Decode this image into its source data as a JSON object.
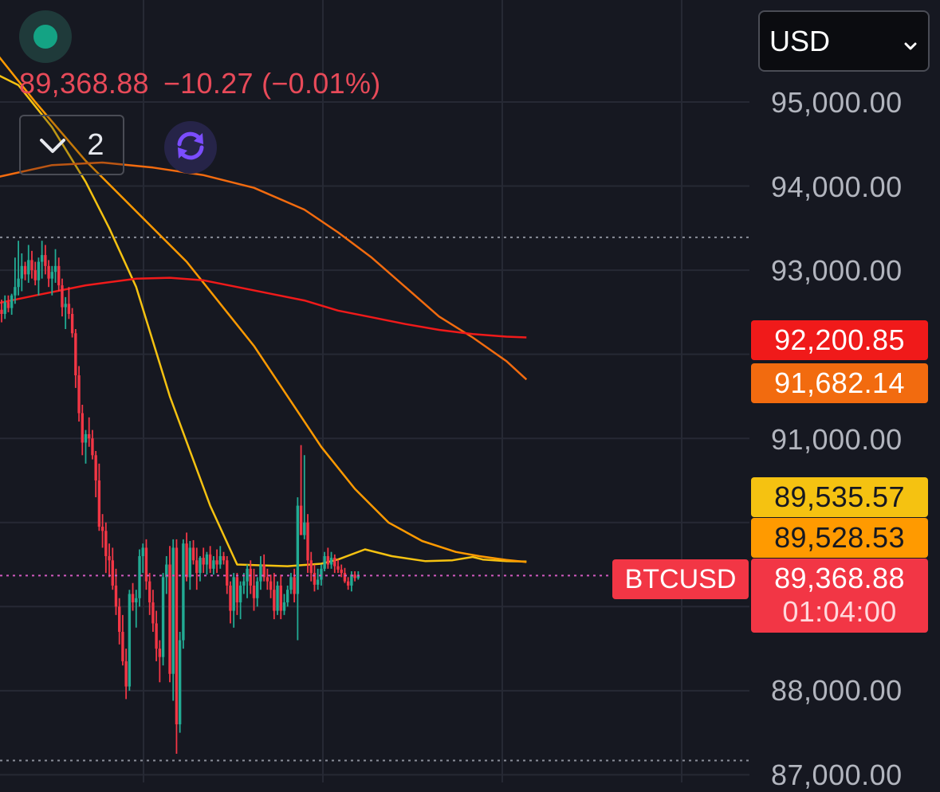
{
  "header": {
    "price": "89,368.88",
    "change": "−10.27 (−0.01%)",
    "collapse_count": "2"
  },
  "icons": {
    "status": "status-dot-icon",
    "collapse": "chevron-down-icon",
    "refresh": "refresh-icon",
    "select": "chevron-down-icon"
  },
  "currency_select": {
    "value": "USD"
  },
  "price_axis": {
    "labels": [
      "95,000.00",
      "94,000.00",
      "93,000.00",
      "91,000.00",
      "88,000.00",
      "87,000.00"
    ]
  },
  "price_tags": [
    {
      "value": "92,200.85",
      "bg": "#f01a1a",
      "fg": "#ffffff"
    },
    {
      "value": "91,682.14",
      "bg": "#f26b0f",
      "fg": "#ffffff"
    },
    {
      "value": "89,535.57",
      "bg": "#f5c211",
      "fg": "#161821"
    },
    {
      "value": "89,528.53",
      "bg": "#ff9a00",
      "fg": "#161821"
    }
  ],
  "last_price_tag": {
    "price": "89,368.88",
    "countdown": "01:04:00"
  },
  "symbol_tag": {
    "symbol": "BTCUSD"
  },
  "colors": {
    "background": "#161821",
    "grid": "#262934",
    "up": "#22ab94",
    "down": "#f23645",
    "change_text": "#e84a59",
    "ma_yellow": "#f5c211",
    "ma_orange": "#ff9a00",
    "ma_dark_orange": "#f26b0f",
    "ma_red": "#f01a1a"
  },
  "chart_data": {
    "type": "candlestick",
    "price_range": [
      86900,
      95600
    ],
    "grid": true,
    "dotted_levels": [
      93390,
      87170
    ],
    "last_price": 89368.88,
    "candles": [
      [
        92530,
        92650,
        92380,
        92480
      ],
      [
        92480,
        92700,
        92420,
        92620
      ],
      [
        92620,
        92700,
        92500,
        92550
      ],
      [
        92550,
        92720,
        92470,
        92700
      ],
      [
        92700,
        93150,
        92600,
        92800
      ],
      [
        92800,
        93350,
        92700,
        92900
      ],
      [
        92900,
        93200,
        92750,
        93050
      ],
      [
        93050,
        93100,
        92880,
        92950
      ],
      [
        92950,
        93300,
        92850,
        93120
      ],
      [
        93120,
        93230,
        92900,
        93000
      ],
      [
        93000,
        93100,
        92820,
        92880
      ],
      [
        92880,
        93150,
        92700,
        93100
      ],
      [
        93100,
        93350,
        92900,
        93180
      ],
      [
        93180,
        93300,
        92950,
        93050
      ],
      [
        93050,
        93120,
        92800,
        92900
      ],
      [
        92900,
        93050,
        92700,
        92980
      ],
      [
        92980,
        93250,
        92850,
        93050
      ],
      [
        93050,
        93150,
        92750,
        92820
      ],
      [
        92820,
        92900,
        92450,
        92560
      ],
      [
        92560,
        92680,
        92300,
        92600
      ],
      [
        92600,
        92800,
        92420,
        92480
      ],
      [
        92480,
        92550,
        92200,
        92250
      ],
      [
        92250,
        92300,
        91600,
        91750
      ],
      [
        91750,
        91860,
        91200,
        91300
      ],
      [
        91300,
        91400,
        90800,
        90950
      ],
      [
        90950,
        91100,
        90700,
        91050
      ],
      [
        91050,
        91250,
        90900,
        91000
      ],
      [
        91000,
        91100,
        90750,
        90800
      ],
      [
        90800,
        90850,
        90300,
        90500
      ],
      [
        90500,
        90700,
        89900,
        89950
      ],
      [
        89950,
        90100,
        89700,
        89900
      ],
      [
        89900,
        90000,
        89400,
        89600
      ],
      [
        89600,
        89750,
        89350,
        89550
      ],
      [
        89550,
        89700,
        89200,
        89250
      ],
      [
        89250,
        89450,
        88900,
        89000
      ],
      [
        89000,
        89100,
        88550,
        88700
      ],
      [
        88700,
        88900,
        88300,
        88350
      ],
      [
        88350,
        88500,
        87900,
        88050
      ],
      [
        88050,
        89200,
        88000,
        89150
      ],
      [
        89150,
        89280,
        88950,
        89050
      ],
      [
        89050,
        89200,
        88750,
        89100
      ],
      [
        89100,
        89680,
        89000,
        89600
      ],
      [
        89600,
        89750,
        89400,
        89700
      ],
      [
        89700,
        89800,
        89200,
        89300
      ],
      [
        89300,
        89400,
        88900,
        89050
      ],
      [
        89050,
        89200,
        88700,
        88800
      ],
      [
        88800,
        88950,
        88350,
        88500
      ],
      [
        88500,
        88600,
        88100,
        88400
      ],
      [
        88400,
        89400,
        88300,
        89350
      ],
      [
        89350,
        89600,
        89150,
        89500
      ],
      [
        89500,
        89720,
        88100,
        88200
      ],
      [
        88200,
        89800,
        87880,
        89700
      ],
      [
        89700,
        89800,
        87250,
        87600
      ],
      [
        87600,
        88700,
        87500,
        88600
      ],
      [
        88600,
        89800,
        88500,
        89750
      ],
      [
        89750,
        89880,
        89300,
        89350
      ],
      [
        89350,
        89780,
        89200,
        89700
      ],
      [
        89700,
        89790,
        89500,
        89550
      ],
      [
        89550,
        89700,
        89200,
        89400
      ],
      [
        89400,
        89600,
        89300,
        89580
      ],
      [
        89580,
        89700,
        89400,
        89500
      ],
      [
        89500,
        89650,
        89380,
        89620
      ],
      [
        89620,
        89720,
        89400,
        89450
      ],
      [
        89450,
        89600,
        89380,
        89550
      ],
      [
        89550,
        89680,
        89400,
        89500
      ],
      [
        89500,
        89720,
        89450,
        89600
      ],
      [
        89600,
        89650,
        89500,
        89550
      ],
      [
        89550,
        89600,
        89150,
        89250
      ],
      [
        89250,
        89300,
        88800,
        88950
      ],
      [
        88950,
        89400,
        88750,
        89350
      ],
      [
        89350,
        89400,
        88900,
        89050
      ],
      [
        89050,
        89300,
        88850,
        89250
      ],
      [
        89250,
        89400,
        89150,
        89300
      ],
      [
        89300,
        89500,
        89100,
        89450
      ],
      [
        89450,
        89550,
        89150,
        89250
      ],
      [
        89250,
        89450,
        88950,
        89100
      ],
      [
        89100,
        89350,
        89000,
        89300
      ],
      [
        89300,
        89600,
        89200,
        89500
      ],
      [
        89500,
        89620,
        89300,
        89350
      ],
      [
        89350,
        89450,
        89200,
        89300
      ],
      [
        89300,
        89380,
        89100,
        89200
      ],
      [
        89200,
        89400,
        88850,
        88950
      ],
      [
        88950,
        89300,
        88900,
        89250
      ],
      [
        89250,
        89380,
        88850,
        88950
      ],
      [
        88950,
        89150,
        88900,
        89050
      ],
      [
        89050,
        89250,
        89000,
        89200
      ],
      [
        89200,
        89400,
        89150,
        89350
      ],
      [
        89350,
        89450,
        89050,
        89150
      ],
      [
        89150,
        90300,
        88600,
        90200
      ],
      [
        90200,
        90920,
        89900,
        89850
      ],
      [
        89850,
        90800,
        89800,
        90000
      ],
      [
        90000,
        90100,
        89400,
        89550
      ],
      [
        89550,
        89650,
        89300,
        89400
      ],
      [
        89400,
        89500,
        89180,
        89260
      ],
      [
        89260,
        89450,
        89200,
        89320
      ],
      [
        89320,
        89500,
        89250,
        89450
      ],
      [
        89450,
        89650,
        89420,
        89600
      ],
      [
        89600,
        89700,
        89450,
        89500
      ],
      [
        89500,
        89650,
        89450,
        89580
      ],
      [
        89580,
        89620,
        89400,
        89480
      ],
      [
        89480,
        89560,
        89400,
        89440
      ],
      [
        89440,
        89500,
        89350,
        89400
      ],
      [
        89400,
        89460,
        89280,
        89300
      ],
      [
        89300,
        89350,
        89200,
        89250
      ],
      [
        89250,
        89420,
        89180,
        89380
      ],
      [
        89380,
        89420,
        89300,
        89340
      ],
      [
        89340,
        89420,
        89320,
        89368.88
      ]
    ],
    "moving_averages": [
      {
        "color": "#f5c211",
        "points": [
          [
            -5,
            95400
          ],
          [
            5,
            95200
          ],
          [
            15,
            94700
          ],
          [
            25,
            94050
          ],
          [
            32,
            93500
          ],
          [
            40,
            92800
          ],
          [
            50,
            91500
          ],
          [
            62,
            90200
          ],
          [
            70,
            89500
          ],
          [
            85,
            89480
          ],
          [
            95,
            89510
          ],
          [
            100,
            89560
          ],
          [
            108,
            89680
          ],
          [
            116,
            89600
          ],
          [
            126,
            89540
          ],
          [
            134,
            89550
          ],
          [
            140,
            89590
          ],
          [
            143,
            89560
          ],
          [
            150,
            89540
          ],
          [
            156,
            89535
          ]
        ]
      },
      {
        "color": "#ff9a00",
        "points": [
          [
            -2,
            95600
          ],
          [
            10,
            95000
          ],
          [
            25,
            94300
          ],
          [
            40,
            93700
          ],
          [
            55,
            93100
          ],
          [
            65,
            92600
          ],
          [
            75,
            92100
          ],
          [
            85,
            91500
          ],
          [
            95,
            90900
          ],
          [
            105,
            90400
          ],
          [
            115,
            90000
          ],
          [
            125,
            89780
          ],
          [
            135,
            89650
          ],
          [
            142,
            89600
          ],
          [
            150,
            89555
          ],
          [
            156,
            89530
          ]
        ]
      },
      {
        "color": "#f26b0f",
        "points": [
          [
            -2,
            94100
          ],
          [
            15,
            94250
          ],
          [
            30,
            94280
          ],
          [
            45,
            94220
          ],
          [
            60,
            94130
          ],
          [
            75,
            93980
          ],
          [
            90,
            93720
          ],
          [
            100,
            93450
          ],
          [
            110,
            93150
          ],
          [
            120,
            92800
          ],
          [
            130,
            92450
          ],
          [
            140,
            92200
          ],
          [
            150,
            91920
          ],
          [
            156,
            91700
          ]
        ]
      },
      {
        "color": "#f01a1a",
        "points": [
          [
            -2,
            92600
          ],
          [
            10,
            92700
          ],
          [
            25,
            92820
          ],
          [
            40,
            92900
          ],
          [
            50,
            92910
          ],
          [
            60,
            92880
          ],
          [
            70,
            92800
          ],
          [
            80,
            92720
          ],
          [
            90,
            92640
          ],
          [
            100,
            92520
          ],
          [
            110,
            92440
          ],
          [
            120,
            92360
          ],
          [
            130,
            92290
          ],
          [
            140,
            92240
          ],
          [
            150,
            92210
          ],
          [
            156,
            92200
          ]
        ]
      }
    ]
  }
}
